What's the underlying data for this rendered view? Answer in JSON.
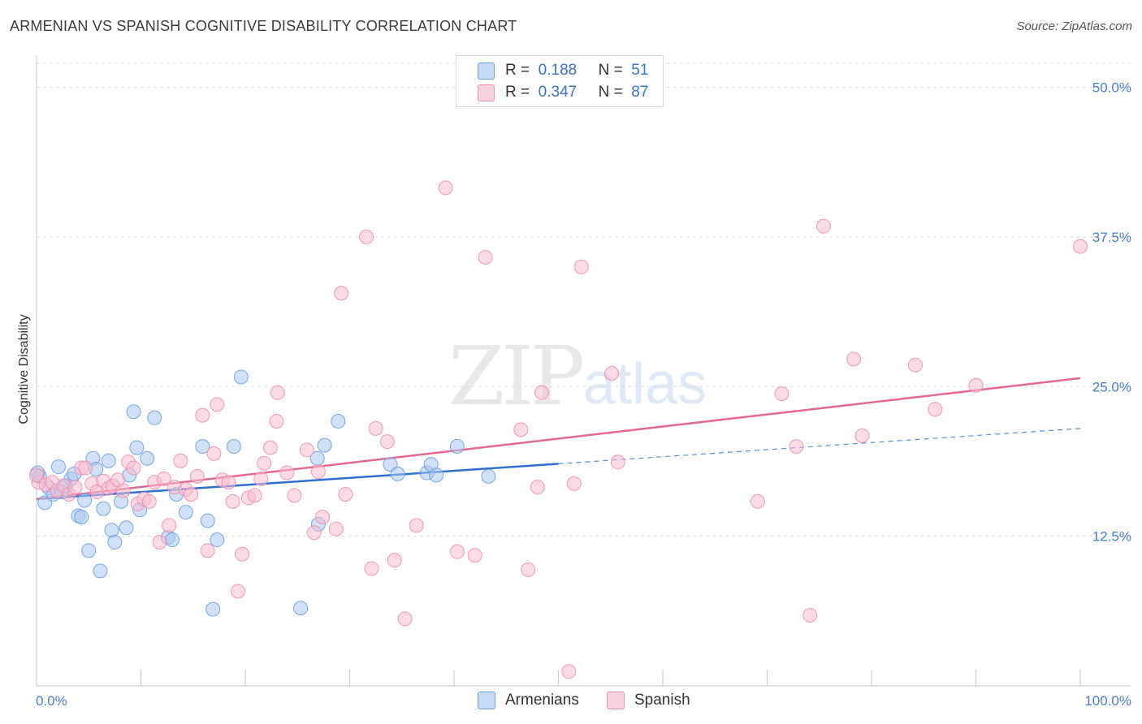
{
  "title": "ARMENIAN VS SPANISH COGNITIVE DISABILITY CORRELATION CHART",
  "source": "Source: ZipAtlas.com",
  "watermark": {
    "zip": "ZIP",
    "atlas": "atlas"
  },
  "legend": {
    "rows": [
      {
        "r_label": "R =",
        "r_value": "0.188",
        "n_label": "N =",
        "n_value": "51",
        "color": "#a9c8f0"
      },
      {
        "r_label": "R =",
        "r_value": "0.347",
        "n_label": "N =",
        "n_value": "87",
        "color": "#f6bcd0"
      }
    ]
  },
  "bottom_legend": {
    "armenians": "Armenians",
    "spanish": "Spanish"
  },
  "colors": {
    "armenian_fill": "#a9c8f0",
    "armenian_stroke": "#6a9fe0",
    "armenian_line": "#2f6fce",
    "spanish_fill": "#f6bcd0",
    "spanish_stroke": "#ec8fb0",
    "spanish_line": "#e4698f",
    "tick_label": "#4a7bd0",
    "grid": "#dddddd"
  },
  "chart_data": {
    "type": "scatter",
    "title": "ARMENIAN VS SPANISH COGNITIVE DISABILITY CORRELATION CHART",
    "xlabel": "",
    "ylabel": "Cognitive Disability",
    "xlim": [
      0,
      100
    ],
    "ylim": [
      0,
      52
    ],
    "x_tick_labels": [
      "0.0%",
      "100.0%"
    ],
    "y_ticks": [
      12.5,
      25.0,
      37.5,
      50.0
    ],
    "y_tick_labels": [
      "12.5%",
      "25.0%",
      "37.5%",
      "50.0%"
    ],
    "grid": true,
    "legend_position": "top-center",
    "series": [
      {
        "name": "Armenians",
        "r": 0.188,
        "n": 51,
        "trend": {
          "x0": 0,
          "y0": 15.6,
          "x1": 100,
          "y1": 21.5,
          "solid_until": 50
        },
        "points": [
          [
            0.3,
            17.5
          ],
          [
            0.8,
            15.3
          ],
          [
            1.2,
            16.5
          ],
          [
            1.6,
            16.0
          ],
          [
            2.1,
            18.3
          ],
          [
            2.4,
            16.2
          ],
          [
            2.8,
            16.7
          ],
          [
            3.3,
            17.3
          ],
          [
            3.6,
            17.7
          ],
          [
            4.0,
            14.2
          ],
          [
            4.3,
            14.1
          ],
          [
            4.6,
            15.5
          ],
          [
            5.0,
            11.3
          ],
          [
            5.4,
            19.0
          ],
          [
            5.7,
            18.1
          ],
          [
            6.1,
            9.6
          ],
          [
            6.4,
            14.8
          ],
          [
            6.9,
            18.8
          ],
          [
            7.2,
            13.0
          ],
          [
            7.5,
            12.0
          ],
          [
            8.1,
            15.4
          ],
          [
            8.6,
            13.2
          ],
          [
            8.9,
            17.6
          ],
          [
            9.3,
            22.9
          ],
          [
            9.6,
            19.9
          ],
          [
            9.9,
            14.7
          ],
          [
            10.6,
            19.0
          ],
          [
            11.3,
            22.4
          ],
          [
            12.6,
            12.4
          ],
          [
            13.0,
            12.2
          ],
          [
            13.4,
            16.0
          ],
          [
            14.3,
            14.5
          ],
          [
            15.9,
            20.0
          ],
          [
            16.4,
            13.8
          ],
          [
            16.9,
            6.4
          ],
          [
            17.3,
            12.2
          ],
          [
            18.9,
            20.0
          ],
          [
            19.6,
            25.8
          ],
          [
            25.3,
            6.5
          ],
          [
            26.9,
            19.0
          ],
          [
            27.0,
            13.5
          ],
          [
            27.6,
            20.1
          ],
          [
            28.9,
            22.1
          ],
          [
            33.9,
            18.5
          ],
          [
            34.6,
            17.7
          ],
          [
            37.4,
            17.8
          ],
          [
            37.8,
            18.5
          ],
          [
            38.3,
            17.6
          ],
          [
            40.3,
            20.0
          ],
          [
            43.3,
            17.5
          ],
          [
            0.1,
            17.8
          ]
        ]
      },
      {
        "name": "Spanish",
        "r": 0.347,
        "n": 87,
        "trend": {
          "x0": 0,
          "y0": 15.6,
          "x1": 100,
          "y1": 25.7
        },
        "points": [
          [
            0.2,
            17.0
          ],
          [
            0.9,
            16.8
          ],
          [
            1.5,
            17.0
          ],
          [
            2.0,
            16.3
          ],
          [
            2.6,
            16.7
          ],
          [
            3.1,
            16.0
          ],
          [
            3.7,
            16.6
          ],
          [
            4.3,
            18.2
          ],
          [
            4.7,
            18.2
          ],
          [
            5.3,
            16.9
          ],
          [
            5.8,
            16.2
          ],
          [
            6.4,
            17.1
          ],
          [
            6.9,
            16.5
          ],
          [
            7.3,
            16.7
          ],
          [
            7.8,
            17.2
          ],
          [
            8.3,
            16.3
          ],
          [
            8.8,
            18.7
          ],
          [
            9.3,
            18.2
          ],
          [
            9.7,
            15.2
          ],
          [
            10.3,
            15.6
          ],
          [
            10.8,
            15.4
          ],
          [
            11.3,
            17.0
          ],
          [
            11.8,
            12.0
          ],
          [
            12.2,
            17.3
          ],
          [
            12.7,
            13.4
          ],
          [
            13.2,
            16.6
          ],
          [
            13.8,
            18.8
          ],
          [
            14.3,
            16.4
          ],
          [
            14.8,
            16.0
          ],
          [
            15.4,
            17.5
          ],
          [
            15.9,
            22.6
          ],
          [
            16.4,
            11.3
          ],
          [
            17.0,
            19.4
          ],
          [
            17.3,
            23.5
          ],
          [
            17.8,
            17.2
          ],
          [
            18.4,
            17.0
          ],
          [
            18.8,
            15.4
          ],
          [
            19.3,
            7.9
          ],
          [
            19.7,
            11.0
          ],
          [
            20.3,
            15.7
          ],
          [
            20.9,
            15.9
          ],
          [
            21.5,
            17.3
          ],
          [
            21.8,
            18.6
          ],
          [
            22.4,
            19.9
          ],
          [
            23.0,
            22.1
          ],
          [
            23.1,
            24.5
          ],
          [
            24.0,
            17.8
          ],
          [
            24.7,
            15.9
          ],
          [
            25.9,
            19.7
          ],
          [
            26.6,
            12.8
          ],
          [
            27.0,
            17.9
          ],
          [
            27.4,
            14.1
          ],
          [
            28.7,
            13.1
          ],
          [
            29.2,
            32.8
          ],
          [
            29.6,
            16.0
          ],
          [
            31.6,
            37.5
          ],
          [
            32.1,
            9.8
          ],
          [
            32.5,
            21.5
          ],
          [
            33.6,
            20.4
          ],
          [
            34.3,
            10.5
          ],
          [
            35.3,
            5.6
          ],
          [
            36.4,
            13.4
          ],
          [
            39.2,
            41.6
          ],
          [
            40.3,
            11.2
          ],
          [
            42.0,
            10.9
          ],
          [
            43.0,
            35.8
          ],
          [
            46.4,
            21.4
          ],
          [
            47.1,
            9.7
          ],
          [
            48.0,
            16.6
          ],
          [
            48.4,
            24.5
          ],
          [
            51.0,
            1.2
          ],
          [
            51.5,
            16.9
          ],
          [
            52.2,
            35.0
          ],
          [
            55.1,
            26.1
          ],
          [
            55.7,
            18.7
          ],
          [
            69.1,
            15.4
          ],
          [
            71.4,
            24.4
          ],
          [
            72.8,
            20.0
          ],
          [
            74.1,
            5.9
          ],
          [
            75.4,
            38.4
          ],
          [
            78.3,
            27.3
          ],
          [
            79.1,
            20.9
          ],
          [
            84.2,
            26.8
          ],
          [
            86.1,
            23.1
          ],
          [
            90.0,
            25.1
          ],
          [
            100.0,
            36.7
          ],
          [
            0.0,
            17.6
          ]
        ]
      }
    ]
  }
}
